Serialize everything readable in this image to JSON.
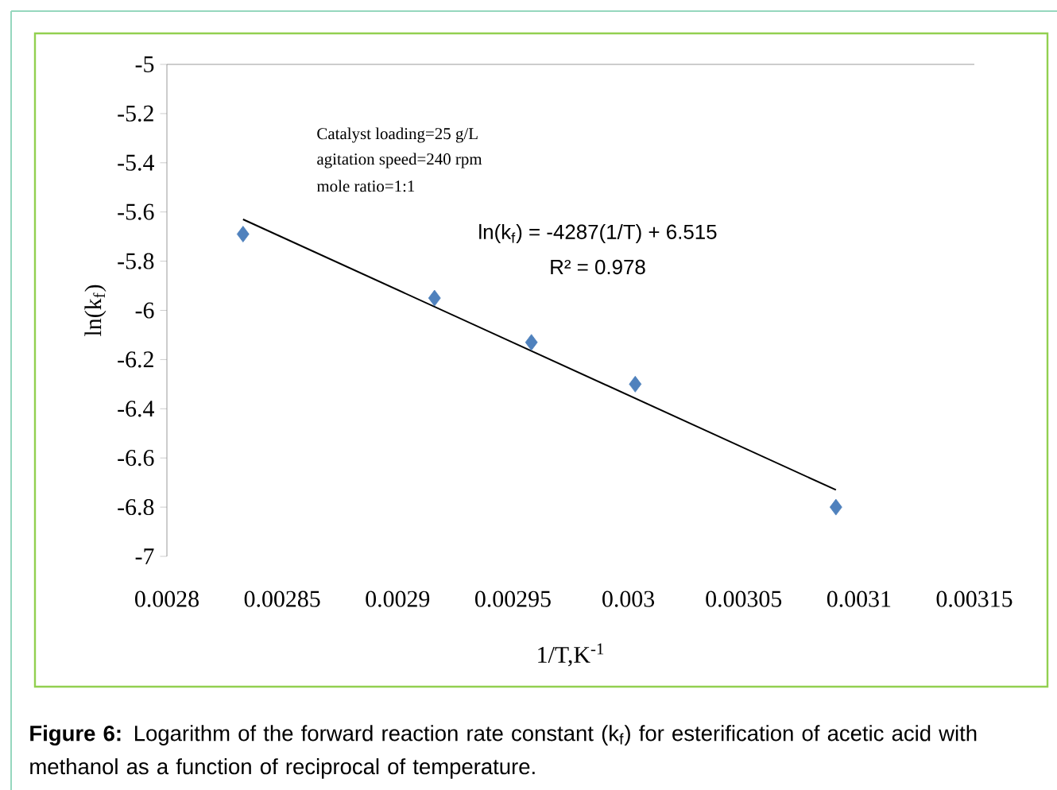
{
  "chart_data": {
    "type": "scatter",
    "xlabel": "1/T,K$^{-1}$",
    "ylabel": "ln(k$_{f}$)",
    "xlim": [
      0.0028,
      0.00315
    ],
    "xticks": [
      0.0028,
      0.00285,
      0.0029,
      0.00295,
      0.003,
      0.00305,
      0.0031,
      0.00315
    ],
    "ylim": [
      -7,
      -5
    ],
    "yticks": [
      -7,
      -6.8,
      -6.6,
      -6.4,
      -6.2,
      -6,
      -5.8,
      -5.6,
      -5.4,
      -5.2,
      -5
    ],
    "series": [
      {
        "marker": "diamond",
        "color": "#4f81bd",
        "x": [
          0.002833,
          0.002916,
          0.002958,
          0.003003,
          0.00309
        ],
        "values": [
          -5.69,
          -5.95,
          -6.13,
          -6.3,
          -6.8
        ]
      },
      {
        "type": "line",
        "marker": "none",
        "color": "#000000",
        "x": [
          0.002833,
          0.00309
        ],
        "values": [
          -5.63,
          -6.73
        ]
      }
    ],
    "annotations": [
      "Catalyst loading=25 g/L",
      "agitation speed=240 rpm",
      "mole ratio=1:1",
      "ln(k$_{f}$) = -4287(1/T) + 6.515",
      "R² = 0.978",
      "**Figure 6:** Logarithm of the forward reaction rate constant (k$_{f}$) for esterification of acetic acid with methanol as a function of reciprocal of temperature."
    ]
  }
}
